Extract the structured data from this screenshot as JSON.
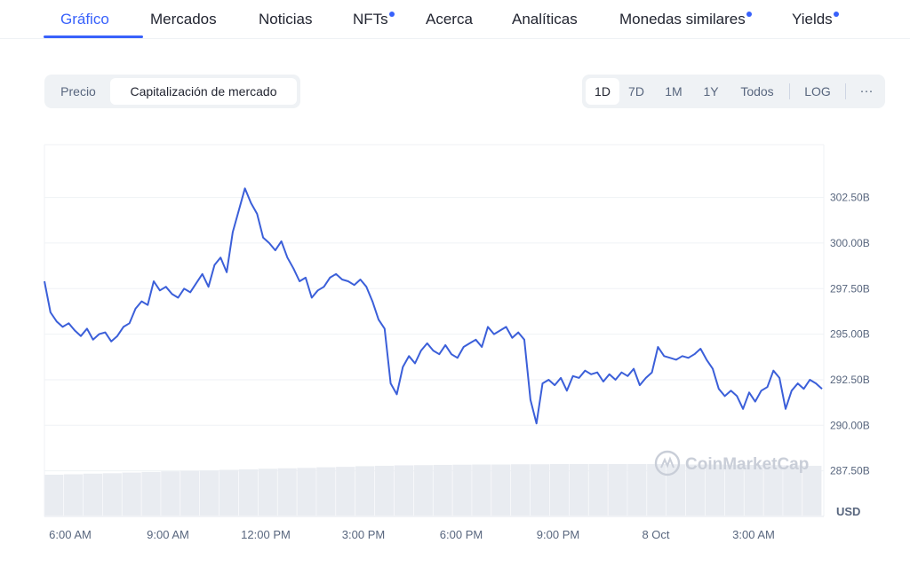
{
  "tabs": [
    {
      "label": "Gráfico",
      "active": true,
      "dot": false
    },
    {
      "label": "Mercados",
      "active": false,
      "dot": false
    },
    {
      "label": "Noticias",
      "active": false,
      "dot": false
    },
    {
      "label": "NFTs",
      "active": false,
      "dot": true
    },
    {
      "label": "Acerca",
      "active": false,
      "dot": false
    },
    {
      "label": "Analíticas",
      "active": false,
      "dot": false
    },
    {
      "label": "Monedas similares",
      "active": false,
      "dot": true
    },
    {
      "label": "Yields",
      "active": false,
      "dot": true
    }
  ],
  "metric_toggle": {
    "precio": "Precio",
    "market_cap": "Capitalización de mercado",
    "selected": "Capitalización de mercado"
  },
  "range_toggle": {
    "options": [
      "1D",
      "7D",
      "1M",
      "1Y",
      "Todos"
    ],
    "selected": "1D",
    "log": "LOG",
    "more": "···"
  },
  "chart": {
    "watermark": "CoinMarketCap",
    "currency": "USD",
    "accent_color": "#3861fb",
    "line_color": "#3b5fd9"
  },
  "chart_data": {
    "type": "line",
    "series": [
      {
        "values": [
          297.9,
          296.2,
          295.7,
          295.4,
          295.6,
          295.2,
          294.9,
          295.3,
          294.7,
          295.0,
          295.1,
          294.6,
          294.9,
          295.4,
          295.6,
          296.4,
          296.8,
          296.6,
          297.9,
          297.4,
          297.6,
          297.2,
          297.0,
          297.5,
          297.3,
          297.8,
          298.3,
          297.6,
          298.8,
          299.2,
          298.4,
          300.6,
          301.8,
          303.0,
          302.2,
          301.6,
          300.3,
          300.0,
          299.6,
          300.1,
          299.2,
          298.6,
          297.9,
          298.1,
          297.0,
          297.4,
          297.6,
          298.1,
          298.3,
          298.0,
          297.9,
          297.7,
          298.0,
          297.6,
          296.8,
          295.8,
          295.3,
          292.3,
          291.7,
          293.2,
          293.8,
          293.4,
          294.1,
          294.5,
          294.1,
          293.9,
          294.4,
          293.9,
          293.7,
          294.3,
          294.5,
          294.7,
          294.3,
          295.4,
          295.0,
          295.2,
          295.4,
          294.8,
          295.1,
          294.7,
          291.4,
          290.1,
          292.3,
          292.5,
          292.2,
          292.6,
          291.9,
          292.7,
          292.6,
          293.0,
          292.8,
          292.9,
          292.4,
          292.8,
          292.5,
          292.9,
          292.7,
          293.1,
          292.2,
          292.6,
          292.9,
          294.3,
          293.8,
          293.7,
          293.6,
          293.8,
          293.7,
          293.9,
          294.2,
          293.6,
          293.1,
          292.0,
          291.6,
          291.9,
          291.6,
          290.9,
          291.8,
          291.3,
          291.9,
          292.1,
          293.0,
          292.6,
          290.9,
          291.9,
          292.3,
          292.0,
          292.5,
          292.3,
          292.0
        ]
      }
    ],
    "x_ticks": [
      "6:00 AM",
      "9:00 AM",
      "12:00 PM",
      "3:00 PM",
      "6:00 PM",
      "9:00 PM",
      "8 Oct",
      "3:00 AM"
    ],
    "y_ticks": [
      "302.50B",
      "300.00B",
      "297.50B",
      "295.00B",
      "292.50B",
      "290.00B",
      "287.50B"
    ],
    "y_tick_values": [
      302.5,
      300.0,
      297.5,
      295.0,
      292.5,
      290.0,
      287.5
    ],
    "ylim": [
      285.0,
      305.4
    ],
    "volume": [
      0.5,
      0.52,
      0.55,
      0.57,
      0.6,
      0.63,
      0.66,
      0.68,
      0.7,
      0.73,
      0.75,
      0.78,
      0.8,
      0.82,
      0.85,
      0.87,
      0.9,
      0.92,
      0.94,
      0.95,
      0.96,
      0.97,
      0.98,
      0.98,
      0.99,
      0.99,
      1.0,
      1.0,
      1.0,
      1.0,
      1.0,
      1.0,
      0.99,
      0.98,
      0.98,
      0.97,
      0.96,
      0.95,
      0.94,
      0.92
    ],
    "grid": true
  }
}
